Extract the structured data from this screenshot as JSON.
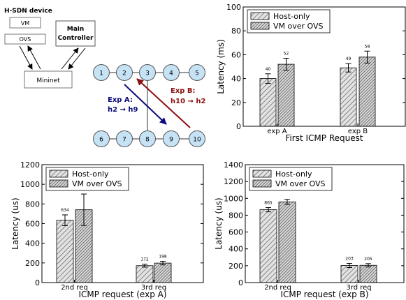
{
  "diagram": {
    "device_label": "H-SDN device",
    "vm_label": "VM",
    "ovs_label": "OVS",
    "controller_label_line1": "Main",
    "controller_label_line2": "Controller",
    "mininet_label": "Mininet",
    "nodes_top": [
      "1",
      "2",
      "3",
      "4",
      "5"
    ],
    "nodes_bottom": [
      "6",
      "7",
      "8",
      "9",
      "10"
    ],
    "exp_a_line1": "Exp A:",
    "exp_a_line2": "h2 → h9",
    "exp_b_line1": "Exp B:",
    "exp_b_line2": "h10 → h2",
    "colors": {
      "exp_a": "#0b0b7a",
      "exp_b": "#8b1010",
      "node_fill": "#c6e2f5"
    }
  },
  "chart_data": [
    {
      "type": "bar",
      "categories": [
        "exp A",
        "exp B"
      ],
      "series": [
        {
          "name": "Host-only",
          "values": [
            40,
            49
          ],
          "errors": [
            4,
            3.5
          ],
          "labels": [
            "40",
            "49"
          ]
        },
        {
          "name": "VM over OVS",
          "values": [
            52,
            58
          ],
          "errors": [
            5,
            5
          ],
          "labels": [
            "52",
            "58"
          ]
        }
      ],
      "xlabel": "First ICMP Request",
      "ylabel": "Latency (ms)",
      "ylim": [
        0,
        100
      ],
      "yticks": [
        0,
        20,
        40,
        60,
        80,
        100
      ],
      "legend": "top-left",
      "grid": false
    },
    {
      "type": "bar",
      "categories": [
        "2nd req",
        "3rd req"
      ],
      "series": [
        {
          "name": "Host-only",
          "values": [
            634,
            172
          ],
          "errors": [
            55,
            15
          ],
          "labels": [
            "634",
            "172"
          ]
        },
        {
          "name": "VM over OVS",
          "values": [
            741,
            198
          ],
          "errors": [
            160,
            18
          ],
          "labels": [
            "741",
            "198"
          ]
        }
      ],
      "xlabel": "ICMP request (exp A)",
      "ylabel": "Latency (us)",
      "ylim": [
        0,
        1200
      ],
      "yticks": [
        0,
        200,
        400,
        600,
        800,
        1000,
        1200
      ],
      "legend": "top-left",
      "grid": false
    },
    {
      "type": "bar",
      "categories": [
        "2nd req",
        "3rd req"
      ],
      "series": [
        {
          "name": "Host-only",
          "values": [
            865,
            203
          ],
          "errors": [
            25,
            25
          ],
          "labels": [
            "865",
            "203"
          ]
        },
        {
          "name": "VM over OVS",
          "values": [
            958,
            205
          ],
          "errors": [
            30,
            20
          ],
          "labels": [
            "",
            "205"
          ]
        }
      ],
      "xlabel": "ICMP request (exp B)",
      "ylabel": "Latency (us)",
      "ylim": [
        0,
        1400
      ],
      "yticks": [
        0,
        200,
        400,
        600,
        800,
        1000,
        1200,
        1400
      ],
      "legend": "top-left",
      "grid": false
    }
  ]
}
